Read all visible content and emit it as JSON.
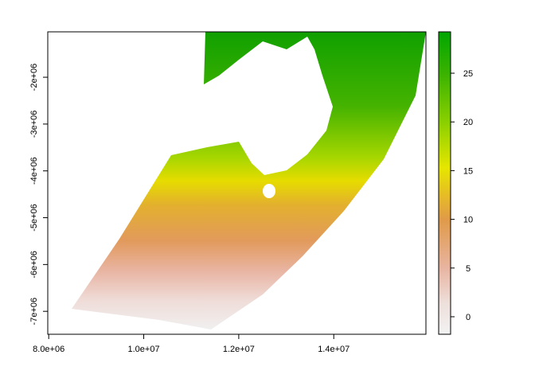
{
  "chart_data": {
    "type": "raster",
    "xlim": [
      7980000,
      15940000
    ],
    "xticks": [
      {
        "value": 8000000,
        "label": "8.0e+06"
      },
      {
        "value": 10000000,
        "label": "1.0e+07"
      },
      {
        "value": 12000000,
        "label": "1.2e+07"
      },
      {
        "value": 14000000,
        "label": "1.4e+07"
      }
    ],
    "ylim": [
      -7490000,
      -1030000
    ],
    "yticks": [
      {
        "value": -2000000,
        "label": "-2e+06"
      },
      {
        "value": -3000000,
        "label": "-3e+06"
      },
      {
        "value": -4000000,
        "label": "-4e+06"
      },
      {
        "value": -5000000,
        "label": "-5e+06"
      },
      {
        "value": -6000000,
        "label": "-6e+06"
      },
      {
        "value": -7000000,
        "label": "-7e+06"
      }
    ],
    "zlim": [
      -1.8,
      29.25
    ],
    "zticks": [
      0,
      5,
      10,
      15,
      20,
      25
    ]
  }
}
